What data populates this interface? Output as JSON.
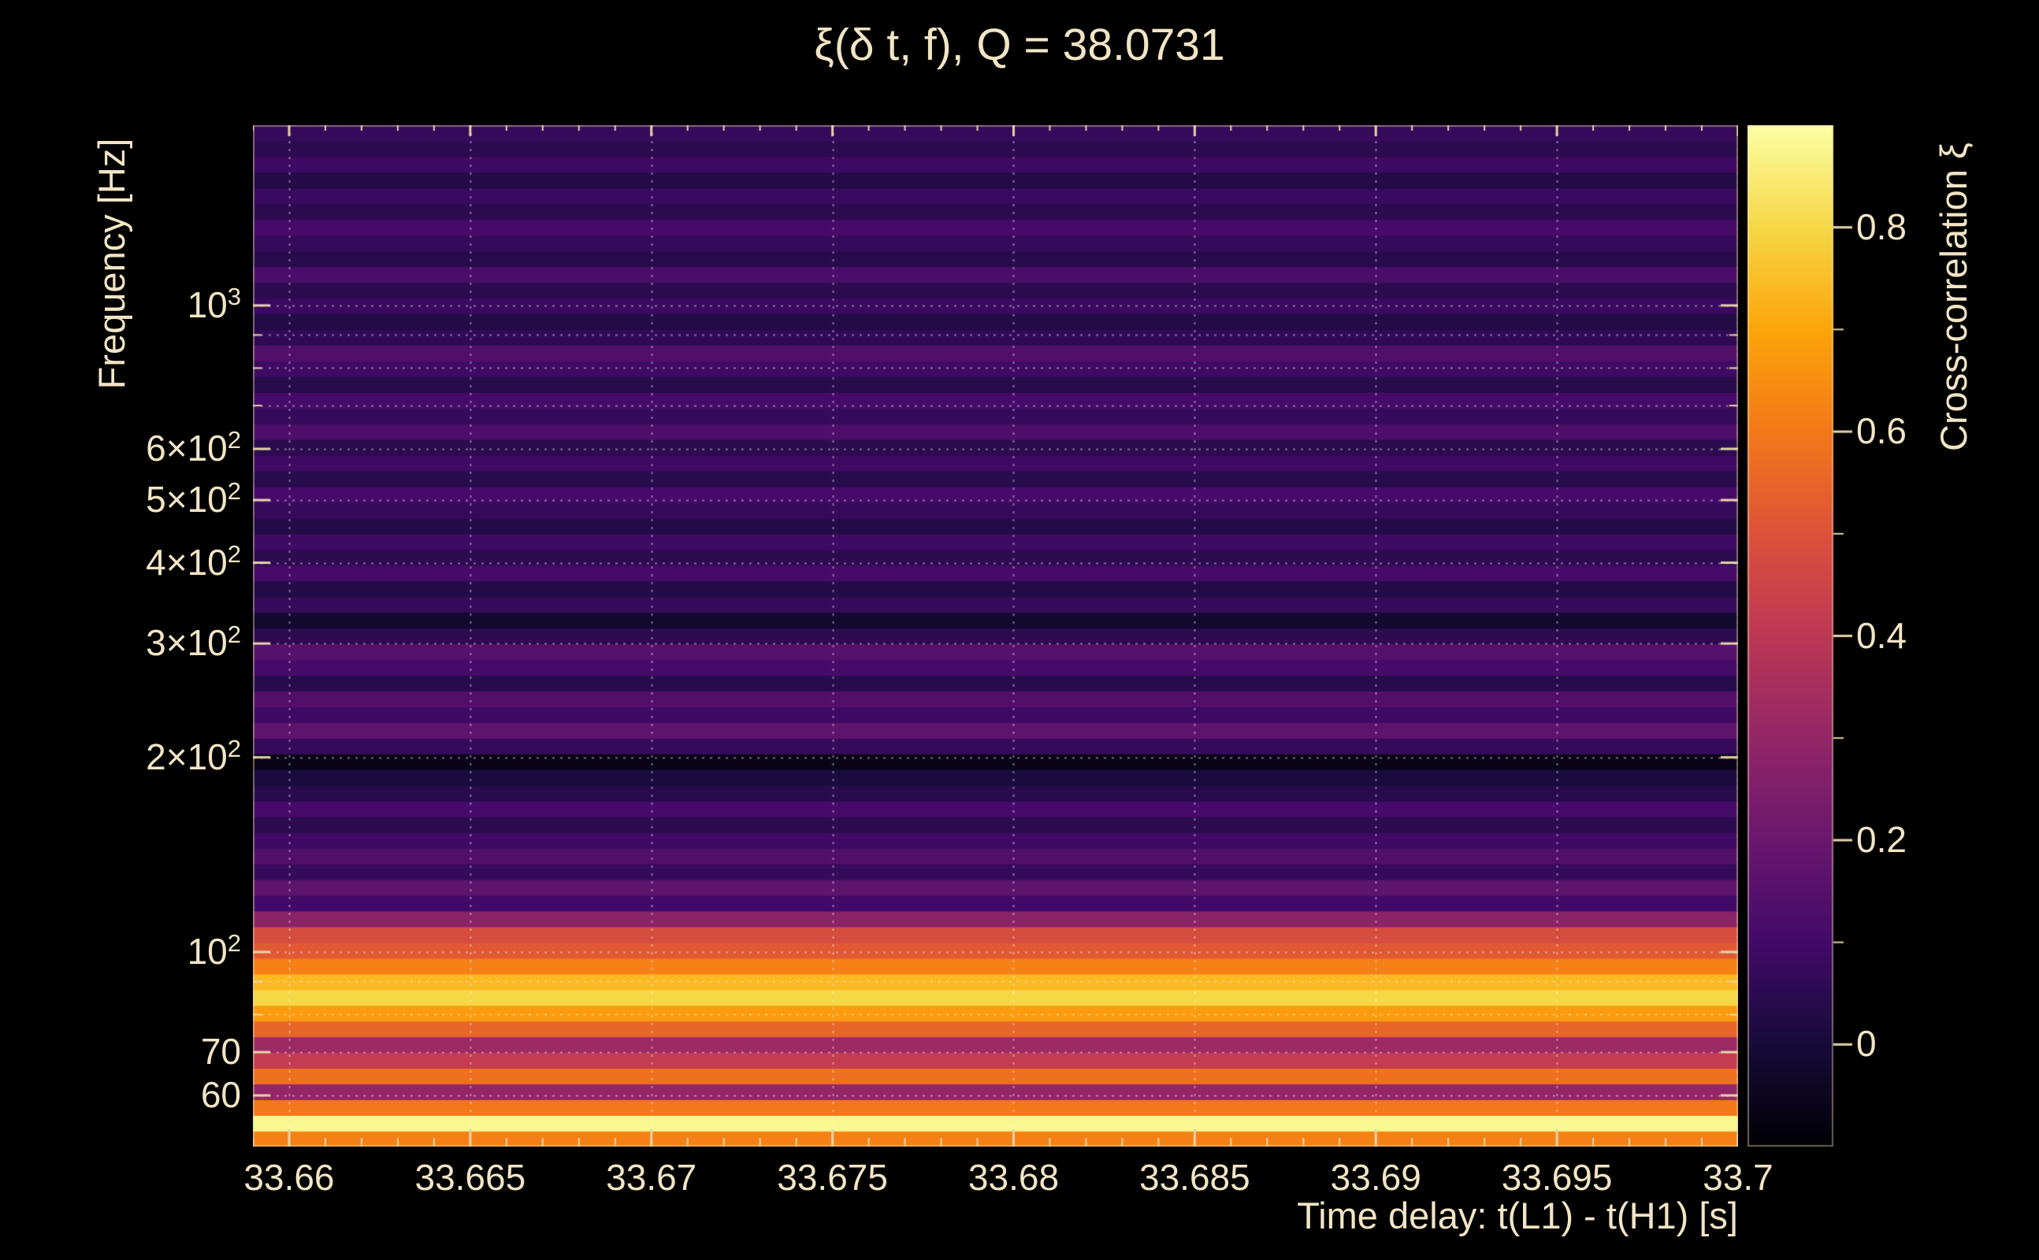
{
  "colors": {
    "background": "#000000",
    "text": "#f2e5c4",
    "tick": "#e6d5a8",
    "grid": "#ffffff"
  },
  "chart_data": {
    "type": "heatmap",
    "title": "ξ(δ t, f), Q = 38.0731",
    "xlabel": "Time delay: t(L1) - t(H1) [s]",
    "ylabel": "Frequency [Hz]",
    "colorbar_label": "Cross-correlation ξ",
    "colormap": "inferno",
    "xlim": [
      33.659,
      33.7
    ],
    "ylim": [
      50,
      1900
    ],
    "yscale": "log",
    "clim": [
      -0.1,
      0.9
    ],
    "x_ticks": [
      {
        "value": 33.66,
        "label": "33.66"
      },
      {
        "value": 33.665,
        "label": "33.665"
      },
      {
        "value": 33.67,
        "label": "33.67"
      },
      {
        "value": 33.675,
        "label": "33.675"
      },
      {
        "value": 33.68,
        "label": "33.68"
      },
      {
        "value": 33.685,
        "label": "33.685"
      },
      {
        "value": 33.69,
        "label": "33.69"
      },
      {
        "value": 33.695,
        "label": "33.695"
      },
      {
        "value": 33.7,
        "label": "33.7"
      }
    ],
    "y_ticks": [
      {
        "value": 1000,
        "mant": "10",
        "exp": "3"
      },
      {
        "value": 600,
        "mant": "6×10",
        "exp": "2"
      },
      {
        "value": 500,
        "mant": "5×10",
        "exp": "2"
      },
      {
        "value": 400,
        "mant": "4×10",
        "exp": "2"
      },
      {
        "value": 300,
        "mant": "3×10",
        "exp": "2"
      },
      {
        "value": 200,
        "mant": "2×10",
        "exp": "2"
      },
      {
        "value": 100,
        "mant": "10",
        "exp": "2"
      },
      {
        "value": 70,
        "mant": "70",
        "exp": ""
      },
      {
        "value": 60,
        "mant": "60",
        "exp": ""
      }
    ],
    "colorbar_ticks": [
      {
        "value": 0.8,
        "label": "0.8"
      },
      {
        "value": 0.6,
        "label": "0.6"
      },
      {
        "value": 0.4,
        "label": "0.4"
      },
      {
        "value": 0.2,
        "label": "0.2"
      },
      {
        "value": 0,
        "label": "0"
      }
    ],
    "grid_x": [
      33.66,
      33.665,
      33.67,
      33.675,
      33.68,
      33.685,
      33.69,
      33.695,
      33.7
    ],
    "grid_y": [
      60,
      70,
      80,
      90,
      100,
      200,
      300,
      400,
      500,
      600,
      700,
      800,
      900,
      1000
    ],
    "bands": {
      "freq_edges_hz": [
        50.0,
        52.88,
        55.92,
        59.14,
        62.55,
        66.15,
        69.96,
        73.98,
        78.24,
        82.74,
        87.51,
        92.54,
        97.87,
        103.5,
        109.46,
        115.76,
        122.42,
        129.47,
        136.92,
        144.8,
        153.13,
        161.95,
        171.27,
        181.13,
        191.56,
        202.59,
        214.25,
        226.59,
        239.63,
        253.43,
        268.02,
        283.45,
        299.77,
        317.03,
        335.28,
        354.58,
        375.0,
        396.59,
        419.42,
        443.57,
        469.11,
        496.12,
        524.68,
        554.89,
        586.84,
        620.62,
        656.35,
        694.14,
        734.1,
        776.36,
        821.06,
        868.33,
        918.32,
        971.19,
        1027.1,
        1086.24,
        1148.78,
        1214.92,
        1284.86,
        1358.84,
        1437.07,
        1519.81,
        1607.31,
        1699.86,
        1797.73,
        1901.24
      ],
      "xi": [
        0.62,
        0.88,
        0.6,
        0.3,
        0.58,
        0.42,
        0.32,
        0.55,
        0.68,
        0.8,
        0.74,
        0.62,
        0.52,
        0.48,
        0.28,
        0.1,
        0.17,
        0.07,
        0.14,
        0.09,
        0.05,
        0.11,
        0.04,
        0.01,
        -0.06,
        0.07,
        0.17,
        0.09,
        0.14,
        0.04,
        0.11,
        0.15,
        0.05,
        -0.02,
        0.07,
        0.03,
        0.11,
        0.05,
        0.09,
        0.03,
        0.07,
        0.11,
        0.04,
        0.09,
        0.05,
        0.13,
        0.07,
        0.11,
        0.04,
        0.09,
        0.14,
        0.06,
        0.03,
        0.08,
        0.05,
        0.12,
        0.04,
        0.07,
        0.11,
        0.05,
        0.08,
        0.03,
        0.09,
        0.05,
        0.07
      ]
    }
  }
}
